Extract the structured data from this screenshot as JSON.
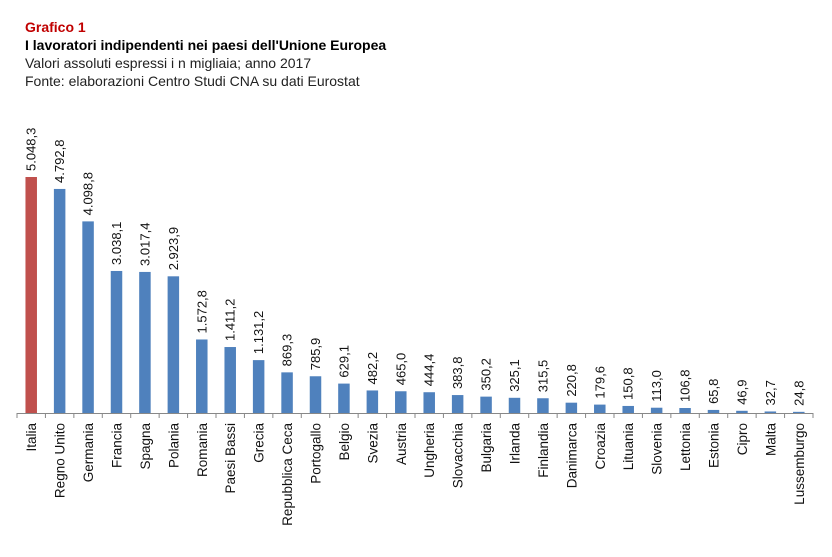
{
  "header": {
    "kicker": "Grafico 1",
    "title": "I lavoratori indipendenti nei paesi dell'Unione Europea",
    "subtitle": "Valori assoluti espressi i n migliaia; anno 2017",
    "source": "Fonte: elaborazioni Centro  Studi  CNA  su dati Eurostat"
  },
  "chart_data": {
    "type": "bar",
    "title": "I lavoratori indipendenti nei paesi dell'Unione Europea",
    "subtitle": "Valori assoluti espressi in migliaia; anno 2017",
    "xlabel": "",
    "ylabel": "",
    "ylim": [
      0,
      5048.3
    ],
    "grid": false,
    "legend": "none",
    "highlight_color": "#c0504d",
    "bar_color": "#4f81bd",
    "categories": [
      "Italia",
      "Regno Unito",
      "Germania",
      "Francia",
      "Spagna",
      "Polania",
      "Romania",
      "Paesi Bassi",
      "Grecia",
      "Repubblica Ceca",
      "Portogallo",
      "Belgio",
      "Svezia",
      "Austria",
      "Ungheria",
      "Slovacchia",
      "Bulgaria",
      "Irlanda",
      "Finlandia",
      "Danimarca",
      "Croazia",
      "Lituania",
      "Slovenia",
      "Lettonia",
      "Estonia",
      "Cipro",
      "Malta",
      "Lussemburgo"
    ],
    "values": [
      5048.3,
      4792.8,
      4098.8,
      3038.1,
      3017.4,
      2923.9,
      1572.8,
      1411.2,
      1131.2,
      869.3,
      785.9,
      629.1,
      482.2,
      465.0,
      444.4,
      383.8,
      350.2,
      325.1,
      315.5,
      220.8,
      179.6,
      150.8,
      113.0,
      106.8,
      65.8,
      46.9,
      32.7,
      24.8
    ],
    "labels": [
      "5.048,3",
      "4.792,8",
      "4.098,8",
      "3.038,1",
      "3.017,4",
      "2.923,9",
      "1.572,8",
      "1.411,2",
      "1.131,2",
      "869,3",
      "785,9",
      "629,1",
      "482,2",
      "465,0",
      "444,4",
      "383,8",
      "350,2",
      "325,1",
      "315,5",
      "220,8",
      "179,6",
      "150,8",
      "113,0",
      "106,8",
      "65,8",
      "46,9",
      "32,7",
      "24,8"
    ],
    "highlighted": [
      "Italia"
    ]
  }
}
